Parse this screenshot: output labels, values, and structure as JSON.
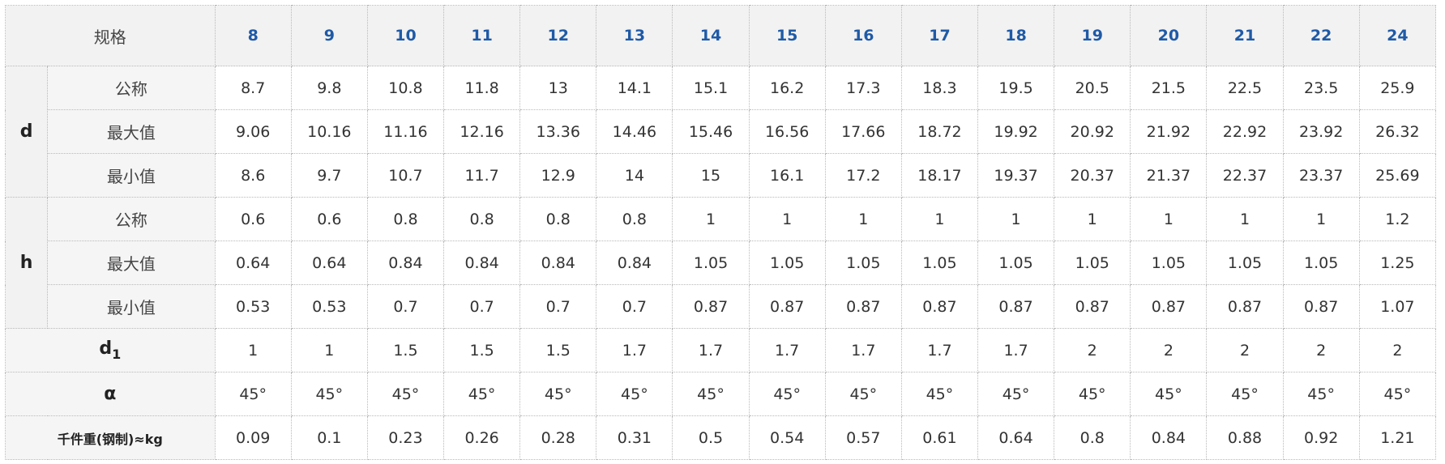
{
  "table": {
    "corner_label": "规格",
    "sizes": [
      "8",
      "9",
      "10",
      "11",
      "12",
      "13",
      "14",
      "15",
      "16",
      "17",
      "18",
      "19",
      "20",
      "21",
      "22",
      "24"
    ],
    "groups": {
      "d": {
        "label": "d",
        "rows": [
          {
            "label": "公称",
            "values": [
              "8.7",
              "9.8",
              "10.8",
              "11.8",
              "13",
              "14.1",
              "15.1",
              "16.2",
              "17.3",
              "18.3",
              "19.5",
              "20.5",
              "21.5",
              "22.5",
              "23.5",
              "25.9"
            ]
          },
          {
            "label": "最大值",
            "values": [
              "9.06",
              "10.16",
              "11.16",
              "12.16",
              "13.36",
              "14.46",
              "15.46",
              "16.56",
              "17.66",
              "18.72",
              "19.92",
              "20.92",
              "21.92",
              "22.92",
              "23.92",
              "26.32"
            ]
          },
          {
            "label": "最小值",
            "values": [
              "8.6",
              "9.7",
              "10.7",
              "11.7",
              "12.9",
              "14",
              "15",
              "16.1",
              "17.2",
              "18.17",
              "19.37",
              "20.37",
              "21.37",
              "22.37",
              "23.37",
              "25.69"
            ]
          }
        ]
      },
      "h": {
        "label": "h",
        "rows": [
          {
            "label": "公称",
            "values": [
              "0.6",
              "0.6",
              "0.8",
              "0.8",
              "0.8",
              "0.8",
              "1",
              "1",
              "1",
              "1",
              "1",
              "1",
              "1",
              "1",
              "1",
              "1.2"
            ]
          },
          {
            "label": "最大值",
            "values": [
              "0.64",
              "0.64",
              "0.84",
              "0.84",
              "0.84",
              "0.84",
              "1.05",
              "1.05",
              "1.05",
              "1.05",
              "1.05",
              "1.05",
              "1.05",
              "1.05",
              "1.05",
              "1.25"
            ]
          },
          {
            "label": "最小值",
            "values": [
              "0.53",
              "0.53",
              "0.7",
              "0.7",
              "0.7",
              "0.7",
              "0.87",
              "0.87",
              "0.87",
              "0.87",
              "0.87",
              "0.87",
              "0.87",
              "0.87",
              "0.87",
              "1.07"
            ]
          }
        ]
      }
    },
    "d1": {
      "label_main": "d",
      "label_sub": "1",
      "values": [
        "1",
        "1",
        "1.5",
        "1.5",
        "1.5",
        "1.7",
        "1.7",
        "1.7",
        "1.7",
        "1.7",
        "1.7",
        "2",
        "2",
        "2",
        "2",
        "2"
      ]
    },
    "alpha": {
      "label": "α",
      "values": [
        "45°",
        "45°",
        "45°",
        "45°",
        "45°",
        "45°",
        "45°",
        "45°",
        "45°",
        "45°",
        "45°",
        "45°",
        "45°",
        "45°",
        "45°",
        "45°"
      ]
    },
    "weight": {
      "label": "千件重(钢制)≈kg",
      "values": [
        "0.09",
        "0.1",
        "0.23",
        "0.26",
        "0.28",
        "0.31",
        "0.5",
        "0.54",
        "0.57",
        "0.61",
        "0.64",
        "0.8",
        "0.84",
        "0.88",
        "0.92",
        "1.21"
      ]
    }
  }
}
